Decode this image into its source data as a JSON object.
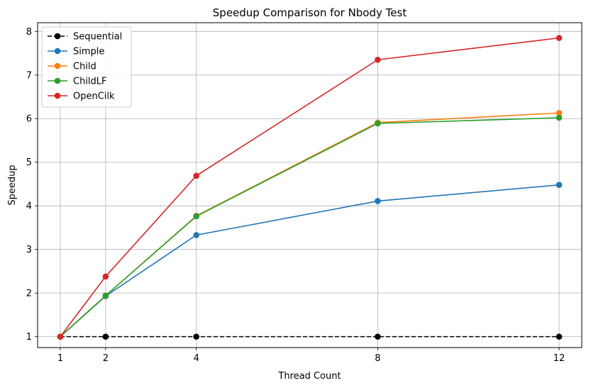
{
  "chart_data": {
    "type": "line",
    "title": "Speedup Comparison for Nbody Test",
    "xlabel": "Thread Count",
    "ylabel": "Speedup",
    "x": [
      1,
      2,
      4,
      8,
      12
    ],
    "xlim": [
      0.5,
      12.5
    ],
    "ylim": [
      0.75,
      8.2
    ],
    "xticks": [
      1,
      2,
      4,
      8,
      12
    ],
    "yticks": [
      1,
      2,
      3,
      4,
      5,
      6,
      7,
      8
    ],
    "grid": true,
    "legend_position": "top-left",
    "series": [
      {
        "name": "Sequential",
        "values": [
          1,
          1,
          1,
          1,
          1
        ],
        "color": "#000000",
        "dashed": true
      },
      {
        "name": "Simple",
        "values": [
          1.0,
          1.93,
          3.33,
          4.11,
          4.48
        ],
        "color": "#1f77b4",
        "dashed": false
      },
      {
        "name": "Child",
        "values": [
          1.0,
          1.94,
          3.77,
          5.91,
          6.13
        ],
        "color": "#ff7f0e",
        "dashed": false
      },
      {
        "name": "ChildLF",
        "values": [
          1.0,
          1.94,
          3.76,
          5.89,
          6.02
        ],
        "color": "#2ca02c",
        "dashed": false
      },
      {
        "name": "OpenCilk",
        "values": [
          1.0,
          2.38,
          4.69,
          7.35,
          7.85
        ],
        "color": "#d62728",
        "dashed": false
      }
    ]
  }
}
